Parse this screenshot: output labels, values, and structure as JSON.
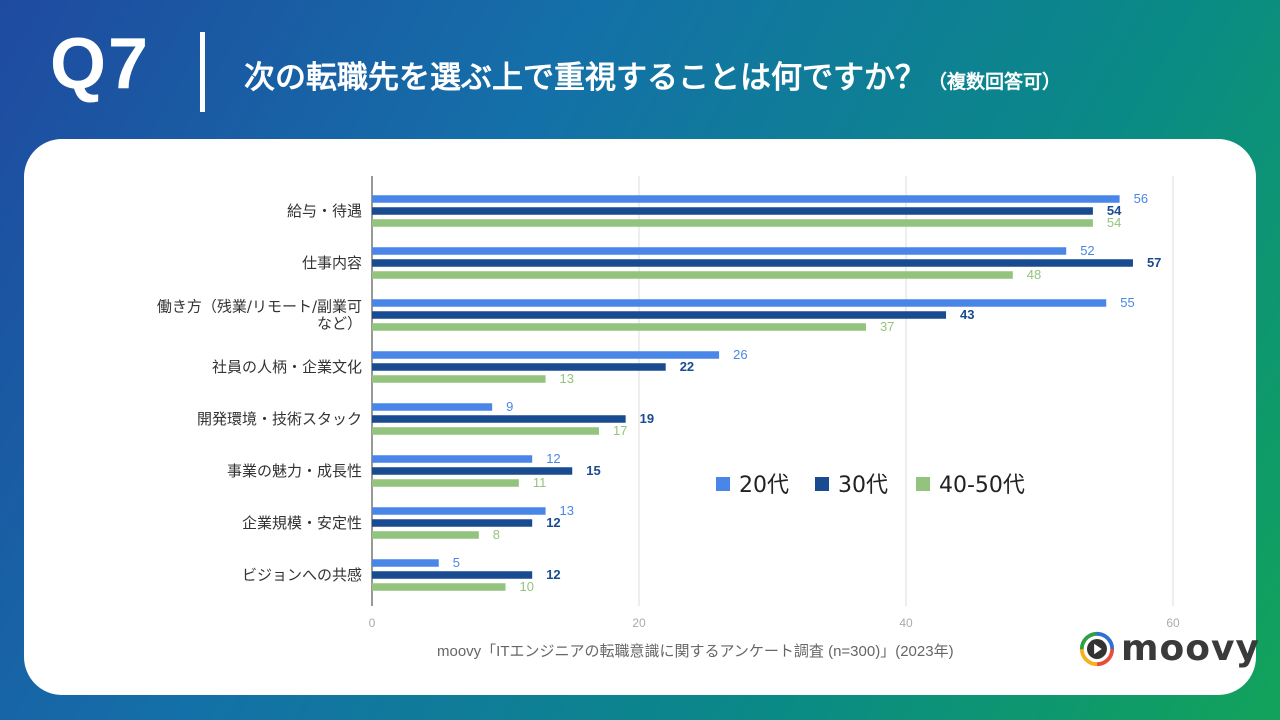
{
  "header": {
    "q_label": "Q7",
    "title": "次の転職先を選ぶ上で重視することは何ですか？",
    "subtitle": "（複数回答可）"
  },
  "source": "moovy「ITエンジニアの転職意識に関するアンケート調査 (n=300)」(2023年)",
  "logo": {
    "text": "moovy"
  },
  "colors": {
    "series_20": "#4a86e8",
    "series_30": "#184b8f",
    "series_40": "#93c47d"
  },
  "chart_data": {
    "type": "bar",
    "orientation": "horizontal",
    "categories": [
      [
        "給与・待遇"
      ],
      [
        "仕事内容"
      ],
      [
        "働き方（残業/リモート/副業可",
        "など）"
      ],
      [
        "社員の人柄・企業文化"
      ],
      [
        "開発環境・技術スタック"
      ],
      [
        "事業の魅力・成長性"
      ],
      [
        "企業規模・安定性"
      ],
      [
        "ビジョンへの共感"
      ]
    ],
    "series": [
      {
        "name": "20代",
        "values": [
          56,
          52,
          55,
          26,
          9,
          12,
          13,
          5
        ]
      },
      {
        "name": "30代",
        "values": [
          54,
          57,
          43,
          22,
          19,
          15,
          12,
          12
        ]
      },
      {
        "name": "40-50代",
        "values": [
          54,
          48,
          37,
          13,
          17,
          11,
          8,
          10
        ]
      }
    ],
    "xlim": [
      0,
      60
    ],
    "xticks": [
      0,
      20,
      40,
      60
    ],
    "legend_position": "center-right",
    "grid": true
  }
}
